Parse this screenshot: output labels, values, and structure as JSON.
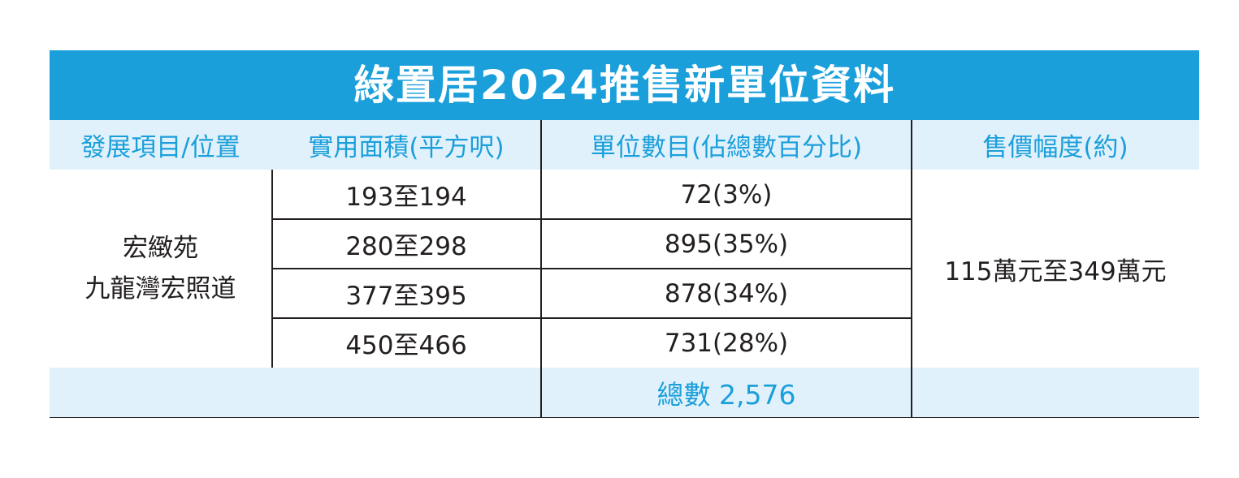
{
  "title": "綠置居2024推售新單位資料",
  "headers": {
    "project": "發展項目/位置",
    "area": "實用面積(平方呎)",
    "units": "單位數目(佔總數百分比)",
    "price": "售價幅度(約)"
  },
  "project": {
    "name": "宏緻苑",
    "location": "九龍灣宏照道"
  },
  "rows": [
    {
      "area": "193至194",
      "units": "72(3%)"
    },
    {
      "area": "280至298",
      "units": "895(35%)"
    },
    {
      "area": "377至395",
      "units": "878(34%)"
    },
    {
      "area": "450至466",
      "units": "731(28%)"
    }
  ],
  "price_range": "115萬元至349萬元",
  "total": "總數 2,576",
  "colors": {
    "title_bg": "#1a9fdb",
    "header_bg": "#e1f1fb",
    "header_text": "#1a9fdb",
    "body_text": "#231f20"
  }
}
